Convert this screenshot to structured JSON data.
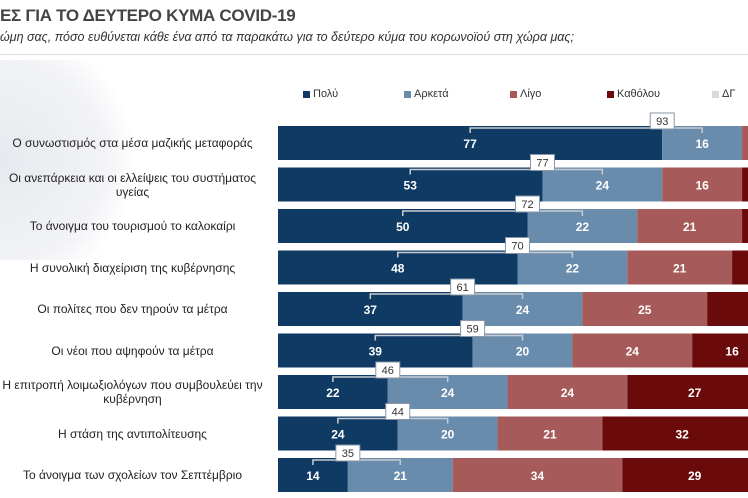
{
  "title": "ΕΣ ΓΙΑ ΤΟ ΔΕΥΤΕΡΟ ΚΥΜΑ COVID-19",
  "subtitle": "ώμη σας, πόσο ευθύνεται κάθε ένα από τα παρακάτω για το δεύτερο κύμα του κορωνοϊού στη χώρα μας;",
  "chart_data": {
    "type": "bar",
    "orientation": "horizontal-stacked-100",
    "legend_position": "top",
    "series": [
      {
        "name": "Πολύ",
        "color": "#0f3a64",
        "values": [
          77,
          53,
          50,
          48,
          37,
          39,
          22,
          24,
          14
        ]
      },
      {
        "name": "Αρκετά",
        "color": "#6a8cac",
        "values": [
          16,
          24,
          22,
          22,
          24,
          20,
          24,
          20,
          21
        ]
      },
      {
        "name": "Λίγο",
        "color": "#a65a5a",
        "values": [
          null,
          16,
          21,
          21,
          25,
          24,
          24,
          21,
          34
        ]
      },
      {
        "name": "Καθόλου",
        "color": "#6b0a0a",
        "values": [
          null,
          null,
          null,
          null,
          null,
          16,
          27,
          32,
          29
        ]
      },
      {
        "name": "ΔΓ",
        "color": "#d9d9d9",
        "values": [
          null,
          null,
          null,
          null,
          null,
          null,
          null,
          null,
          null
        ]
      }
    ],
    "categories": [
      "Ο συνωστισμός στα μέσα μαζικής μεταφοράς",
      "Οι ανεπάρκεια και οι ελλείψεις του συστήματος υγείας",
      "Το άνοιγμα του τουρισμού το καλοκαίρι",
      "Η συνολική διαχείριση της κυβέρνησης",
      "Οι πολίτες που δεν τηρούν τα μέτρα",
      "Οι νέοι που αψηφούν τα μέτρα",
      "Η επιτροπή λοιμωξιολόγων που συμβουλεύει την κυβέρνηση",
      "Η στάση της αντιπολίτευσης",
      "Το άνοιγμα των σχολείων τον Σεπτέμβριο"
    ],
    "totals_polu_arketa": [
      93,
      77,
      72,
      70,
      61,
      59,
      46,
      44,
      35
    ],
    "xlim": [
      0,
      100
    ]
  }
}
